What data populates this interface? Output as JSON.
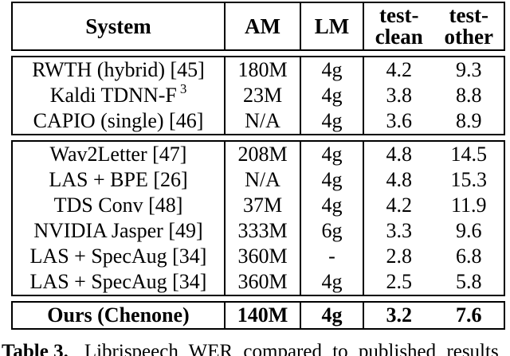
{
  "table": {
    "header": {
      "system": "System",
      "am": "AM",
      "lm": "LM",
      "test_prefix": "test-",
      "clean": "clean",
      "other": "other"
    },
    "sections": [
      {
        "rows": [
          {
            "system": "RWTH (hybrid) [45]",
            "sup": "",
            "am": "180M",
            "lm": "4g",
            "clean": "4.2",
            "other": "9.3"
          },
          {
            "system": "Kaldi TDNN-F",
            "sup": "3",
            "am": "23M",
            "lm": "4g",
            "clean": "3.8",
            "other": "8.8"
          },
          {
            "system": "CAPIO (single) [46]",
            "sup": "",
            "am": "N/A",
            "lm": "4g",
            "clean": "3.6",
            "other": "8.9"
          }
        ]
      },
      {
        "rows": [
          {
            "system": "Wav2Letter [47]",
            "sup": "",
            "am": "208M",
            "lm": "4g",
            "clean": "4.8",
            "other": "14.5"
          },
          {
            "system": "LAS + BPE [26]",
            "sup": "",
            "am": "N/A",
            "lm": "4g",
            "clean": "4.8",
            "other": "15.3"
          },
          {
            "system": "TDS Conv [48]",
            "sup": "",
            "am": "37M",
            "lm": "4g",
            "clean": "4.2",
            "other": "11.9"
          },
          {
            "system": "NVIDIA Jasper [49]",
            "sup": "",
            "am": "333M",
            "lm": "6g",
            "clean": "3.3",
            "other": "9.6"
          },
          {
            "system": "LAS + SpecAug [34]",
            "sup": "",
            "am": "360M",
            "lm": "-",
            "clean": "2.8",
            "other": "6.8"
          },
          {
            "system": "LAS + SpecAug [34]",
            "sup": "",
            "am": "360M",
            "lm": "4g",
            "clean": "2.5",
            "other": "5.8"
          }
        ]
      },
      {
        "rows": [
          {
            "system": "Ours (Chenone)",
            "sup": "",
            "am": "140M",
            "lm": "4g",
            "clean": "3.2",
            "other": "7.6"
          }
        ]
      }
    ]
  },
  "caption": {
    "label": "Table 3.",
    "text": "Librispeech WER compared to published results"
  }
}
